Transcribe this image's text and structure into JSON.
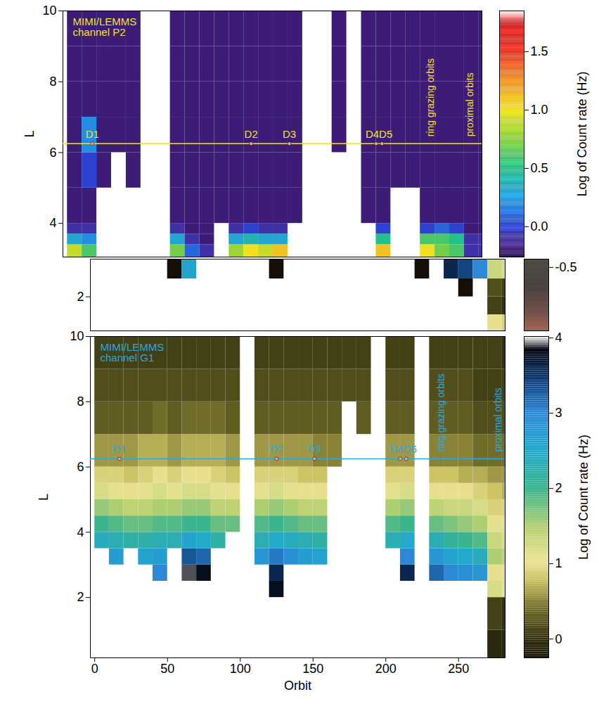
{
  "chart_data": [
    {
      "type": "heatmap",
      "title": "MIMI/LEMMS channel P2",
      "y_label": "L",
      "tick_labels": "y",
      "color": "#f2e230",
      "xlim": [
        -3,
        282
      ],
      "ylim": [
        3.05,
        10
      ],
      "yticks": [
        4,
        6,
        8,
        10
      ],
      "orbit_bins": [
        0,
        10,
        20,
        30,
        40,
        50,
        60,
        70,
        80,
        90,
        100,
        110,
        120,
        130,
        140,
        150,
        160,
        170,
        180,
        190,
        200,
        210,
        220,
        230,
        240,
        250,
        260,
        270,
        280,
        290
      ],
      "L_bins": [
        3.05,
        3.4,
        3.7,
        4,
        5,
        6,
        7,
        8,
        9,
        10
      ],
      "cells": [
        [
          0.9,
          0.3,
          -0.1,
          -0.2,
          -0.2,
          -0.2,
          -0.2,
          -0.2,
          -0.2
        ],
        [
          0.6,
          0.2,
          -0.1,
          -0.2,
          0.0,
          0.2,
          -0.2,
          -0.2,
          -0.2
        ],
        [
          null,
          null,
          null,
          null,
          -0.2,
          -0.2,
          -0.2,
          -0.2,
          -0.2
        ],
        [
          null,
          null,
          null,
          null,
          null,
          -0.2,
          -0.2,
          -0.2,
          -0.2
        ],
        [
          null,
          null,
          null,
          null,
          -0.2,
          -0.2,
          -0.2,
          -0.2,
          -0.2
        ],
        [
          null,
          null,
          null,
          null,
          null,
          null,
          null,
          null,
          null
        ],
        [
          null,
          null,
          null,
          null,
          null,
          null,
          null,
          null,
          null
        ],
        [
          0.7,
          0.3,
          -0.1,
          -0.2,
          -0.2,
          -0.2,
          -0.2,
          -0.2,
          -0.2
        ],
        [
          0.1,
          -0.1,
          -0.2,
          -0.2,
          -0.2,
          -0.2,
          -0.2,
          -0.2,
          -0.2
        ],
        [
          -0.1,
          -0.2,
          -0.2,
          -0.2,
          -0.2,
          -0.2,
          -0.2,
          -0.2,
          -0.2
        ],
        [
          null,
          null,
          null,
          -0.2,
          -0.2,
          -0.2,
          -0.2,
          -0.2,
          -0.2
        ],
        [
          0.8,
          0.3,
          -0.1,
          -0.2,
          -0.2,
          -0.2,
          -0.2,
          -0.2,
          -0.2
        ],
        [
          1.0,
          0.4,
          0.0,
          -0.2,
          -0.2,
          -0.2,
          -0.2,
          -0.2,
          -0.2
        ],
        [
          0.9,
          0.3,
          -0.1,
          -0.2,
          -0.2,
          -0.2,
          -0.2,
          -0.2,
          -0.2
        ],
        [
          1.1,
          0.3,
          -0.1,
          -0.2,
          -0.2,
          -0.2,
          -0.2,
          -0.2,
          -0.2
        ],
        [
          null,
          null,
          null,
          -0.2,
          -0.2,
          -0.2,
          -0.2,
          -0.2,
          -0.2
        ],
        [
          null,
          null,
          null,
          null,
          null,
          null,
          null,
          null,
          null
        ],
        [
          null,
          null,
          null,
          null,
          null,
          null,
          null,
          null,
          null
        ],
        [
          null,
          null,
          null,
          null,
          null,
          -0.2,
          -0.2,
          -0.2,
          -0.2
        ],
        [
          null,
          null,
          null,
          null,
          null,
          null,
          null,
          null,
          null
        ],
        [
          null,
          null,
          null,
          -0.2,
          -0.2,
          -0.2,
          -0.2,
          -0.2,
          -0.2
        ],
        [
          1.1,
          0.5,
          0.0,
          -0.2,
          -0.2,
          -0.2,
          -0.2,
          -0.2,
          -0.2
        ],
        [
          null,
          null,
          null,
          null,
          -0.2,
          -0.2,
          -0.2,
          -0.2,
          -0.2
        ],
        [
          null,
          null,
          null,
          null,
          -0.2,
          -0.2,
          -0.2,
          -0.2,
          -0.2
        ],
        [
          1.0,
          0.6,
          0.0,
          -0.2,
          -0.2,
          -0.2,
          -0.2,
          -0.2,
          -0.2
        ],
        [
          0.7,
          0.6,
          0.1,
          -0.2,
          -0.2,
          -0.2,
          -0.2,
          -0.2,
          -0.2
        ],
        [
          0.6,
          0.5,
          0.0,
          -0.2,
          -0.2,
          -0.2,
          -0.2,
          -0.2,
          -0.2
        ],
        [
          -0.1,
          -0.1,
          -0.2,
          -0.2,
          -0.2,
          -0.2,
          -0.2,
          -0.2,
          -0.2
        ],
        [
          -0.1,
          -0.1,
          -0.2,
          -0.2,
          -0.2,
          -0.2,
          -0.2,
          -0.2,
          -0.2
        ]
      ],
      "line": {
        "L": 6.25
      },
      "events": [
        {
          "text": "D1",
          "orbits": [
            17
          ]
        },
        {
          "text": "D2",
          "orbits": [
            125
          ]
        },
        {
          "text": "D3",
          "orbits": [
            151
          ]
        },
        {
          "text": "D4D5",
          "orbits": [
            210,
            214
          ]
        }
      ],
      "annotations": [
        {
          "text": "ring grazing orbits",
          "orbit": 247
        },
        {
          "text": "proximal orbits",
          "orbit": 274
        }
      ],
      "colorbar": {
        "label": "Log of Count rate (Hz)",
        "range": [
          -0.26,
          1.85
        ],
        "ticks": [
          {
            "value": 0,
            "label": "0.0"
          },
          {
            "value": 0.5,
            "label": "0.5"
          },
          {
            "value": 1,
            "label": "1.0"
          },
          {
            "value": 1.5,
            "label": "1.5"
          }
        ]
      }
    },
    {
      "type": "heatmap",
      "tick_labels": "y",
      "xlim": [
        -3,
        282
      ],
      "ylim": [
        1.05,
        3.05
      ],
      "yticks": [
        2
      ],
      "orbit_bins": [
        0,
        10,
        20,
        30,
        40,
        50,
        60,
        70,
        80,
        90,
        100,
        110,
        120,
        130,
        140,
        150,
        160,
        170,
        180,
        190,
        200,
        210,
        220,
        230,
        240,
        250,
        260,
        270,
        280,
        290
      ],
      "L_bins": [
        1.05,
        1.5,
        2,
        2.5,
        3.05
      ],
      "cells": [
        [
          null,
          null,
          null,
          null
        ],
        [
          null,
          null,
          null,
          null
        ],
        [
          null,
          null,
          null,
          null
        ],
        [
          null,
          null,
          null,
          null
        ],
        [
          null,
          null,
          null,
          null
        ],
        [
          null,
          null,
          null,
          -0.6
        ],
        [
          null,
          null,
          null,
          2.6
        ],
        [
          null,
          null,
          null,
          null
        ],
        [
          null,
          null,
          null,
          null
        ],
        [
          null,
          null,
          null,
          null
        ],
        [
          null,
          null,
          null,
          null
        ],
        [
          null,
          null,
          null,
          null
        ],
        [
          null,
          null,
          null,
          -0.6
        ],
        [
          null,
          null,
          null,
          null
        ],
        [
          null,
          null,
          null,
          null
        ],
        [
          null,
          null,
          null,
          null
        ],
        [
          null,
          null,
          null,
          null
        ],
        [
          null,
          null,
          null,
          null
        ],
        [
          null,
          null,
          null,
          null
        ],
        [
          null,
          null,
          null,
          null
        ],
        [
          null,
          null,
          null,
          null
        ],
        [
          null,
          null,
          null,
          null
        ],
        [
          null,
          null,
          null,
          -0.6
        ],
        [
          null,
          null,
          null,
          null
        ],
        [
          null,
          null,
          null,
          3.6
        ],
        [
          null,
          null,
          -0.6,
          3.4
        ],
        [
          null,
          null,
          null,
          3.0
        ],
        [
          1.0,
          0.1,
          0.2,
          1.3
        ],
        [
          0.9,
          0.0,
          0.1,
          1.2
        ]
      ],
      "colorbar": {
        "range": [
          -1.34,
          -0.39
        ],
        "ticks": [
          -0.5
        ]
      }
    },
    {
      "type": "heatmap",
      "title": "MIMI/LEMMS channel G1",
      "x_label": "Orbit",
      "y_label": "L",
      "color": "#29a9e0",
      "xlim": [
        -3,
        282
      ],
      "ylim": [
        0.15,
        10
      ],
      "xticks": [
        0,
        50,
        100,
        150,
        200,
        250
      ],
      "yticks": [
        2,
        4,
        6,
        8,
        10
      ],
      "orbit_bins": [
        0,
        10,
        20,
        30,
        40,
        50,
        60,
        70,
        80,
        90,
        100,
        110,
        120,
        130,
        140,
        150,
        160,
        170,
        180,
        190,
        200,
        210,
        220,
        230,
        240,
        250,
        260,
        270,
        280,
        290
      ],
      "L_bins": [
        0.15,
        1,
        2,
        2.5,
        3,
        3.5,
        4,
        4.5,
        5,
        5.5,
        6,
        7,
        8,
        9,
        10
      ],
      "cells": [
        [
          null,
          null,
          null,
          null,
          null,
          2.4,
          2.0,
          1.6,
          1.2,
          0.9,
          0.6,
          0.3,
          0.2,
          0.1
        ],
        [
          null,
          null,
          null,
          null,
          2.7,
          2.3,
          1.9,
          1.5,
          1.1,
          0.9,
          0.6,
          0.3,
          0.2,
          0.1
        ],
        [
          null,
          null,
          null,
          null,
          null,
          2.2,
          1.8,
          1.4,
          1.0,
          0.8,
          0.6,
          0.3,
          0.2,
          0.1
        ],
        [
          null,
          null,
          null,
          null,
          2.6,
          2.2,
          1.8,
          1.4,
          1.1,
          0.9,
          0.7,
          0.3,
          0.2,
          0.1
        ],
        [
          null,
          null,
          null,
          3.0,
          2.7,
          2.3,
          1.9,
          1.5,
          1.2,
          1.0,
          0.7,
          0.4,
          0.2,
          0.1
        ],
        [
          null,
          null,
          null,
          null,
          null,
          2.3,
          1.9,
          1.5,
          1.1,
          0.9,
          0.6,
          0.3,
          0.2,
          0.1
        ],
        [
          null,
          null,
          null,
          3.9,
          3.3,
          2.6,
          2.0,
          1.6,
          1.2,
          1.0,
          0.7,
          0.4,
          0.2,
          0.1
        ],
        [
          null,
          null,
          null,
          3.8,
          3.2,
          2.5,
          2.0,
          1.6,
          1.2,
          1.0,
          0.7,
          0.4,
          0.2,
          0.1
        ],
        [
          null,
          null,
          null,
          null,
          null,
          2.2,
          1.8,
          1.4,
          1.1,
          0.9,
          0.7,
          0.4,
          0.2,
          0.1
        ],
        [
          null,
          null,
          null,
          null,
          null,
          null,
          1.8,
          1.4,
          1.0,
          0.8,
          0.6,
          0.3,
          0.2,
          0.1
        ],
        [
          null,
          null,
          null,
          null,
          null,
          null,
          null,
          null,
          null,
          null,
          null,
          null,
          null,
          null
        ],
        [
          null,
          null,
          null,
          null,
          2.8,
          2.3,
          1.9,
          1.5,
          1.1,
          0.9,
          0.6,
          0.3,
          0.2,
          0.1
        ],
        [
          null,
          null,
          3.8,
          3.6,
          3.1,
          2.5,
          2.0,
          1.6,
          1.2,
          0.9,
          0.6,
          0.3,
          0.2,
          0.1
        ],
        [
          null,
          null,
          null,
          null,
          2.9,
          2.4,
          1.9,
          1.5,
          1.1,
          0.9,
          0.6,
          0.3,
          0.2,
          0.1
        ],
        [
          null,
          null,
          null,
          null,
          2.7,
          2.3,
          1.8,
          1.4,
          1.0,
          0.8,
          0.6,
          0.3,
          0.2,
          0.1
        ],
        [
          null,
          null,
          null,
          null,
          2.6,
          2.2,
          1.8,
          1.4,
          1.0,
          0.8,
          0.5,
          0.3,
          0.2,
          0.1
        ],
        [
          null,
          null,
          null,
          null,
          null,
          null,
          null,
          null,
          null,
          null,
          0.5,
          0.3,
          0.2,
          0.1
        ],
        [
          null,
          null,
          null,
          null,
          null,
          null,
          null,
          null,
          null,
          null,
          null,
          null,
          0.2,
          0.1
        ],
        [
          null,
          null,
          null,
          null,
          null,
          null,
          null,
          null,
          null,
          null,
          null,
          0.3,
          0.2,
          0.1
        ],
        [
          null,
          null,
          null,
          null,
          null,
          null,
          null,
          null,
          null,
          null,
          null,
          null,
          null,
          null
        ],
        [
          null,
          null,
          null,
          null,
          null,
          2.3,
          1.9,
          1.5,
          1.1,
          0.9,
          0.6,
          0.3,
          0.2,
          0.1
        ],
        [
          null,
          null,
          null,
          3.6,
          3.0,
          2.5,
          2.0,
          1.6,
          1.2,
          0.9,
          0.6,
          0.3,
          0.2,
          0.1
        ],
        [
          null,
          null,
          null,
          null,
          null,
          null,
          null,
          null,
          null,
          null,
          null,
          null,
          null,
          null
        ],
        [
          null,
          null,
          null,
          3.2,
          2.8,
          2.3,
          1.8,
          1.4,
          1.0,
          0.8,
          0.5,
          0.3,
          0.2,
          0.1
        ],
        [
          null,
          null,
          null,
          3.0,
          2.6,
          2.1,
          1.7,
          1.3,
          1.0,
          0.8,
          0.5,
          0.3,
          0.2,
          0.1
        ],
        [
          null,
          null,
          null,
          2.9,
          2.5,
          2.0,
          1.6,
          1.3,
          1.0,
          0.7,
          0.5,
          0.3,
          0.2,
          0.1
        ],
        [
          null,
          null,
          null,
          2.8,
          2.4,
          1.9,
          1.5,
          1.2,
          0.9,
          0.7,
          0.4,
          0.2,
          0.1,
          0.1
        ],
        [
          -0.1,
          0.1,
          1.2,
          1.0,
          1.5,
          1.3,
          1.1,
          0.9,
          0.8,
          0.6,
          0.4,
          0.2,
          0.1,
          0.1
        ],
        [
          -0.1,
          0.0,
          1.1,
          1.0,
          1.4,
          1.2,
          1.0,
          0.9,
          0.7,
          0.6,
          0.4,
          0.2,
          0.1,
          0.0
        ]
      ],
      "line": {
        "L": 6.25
      },
      "events": [
        {
          "text": "D1",
          "orbits": [
            17
          ]
        },
        {
          "text": "D2",
          "orbits": [
            125
          ]
        },
        {
          "text": "D3",
          "orbits": [
            151
          ]
        },
        {
          "text": "D4D5",
          "orbits": [
            210,
            214
          ]
        }
      ],
      "annotations": [
        {
          "text": "ring grazing orbits",
          "orbit": 238
        },
        {
          "text": "proximal orbits",
          "orbit": 277
        }
      ],
      "colorbar": {
        "label": "Log of Count rate (Hz)",
        "range": [
          -0.25,
          4.02
        ],
        "ticks": [
          0,
          1,
          2,
          3,
          4
        ]
      }
    }
  ]
}
